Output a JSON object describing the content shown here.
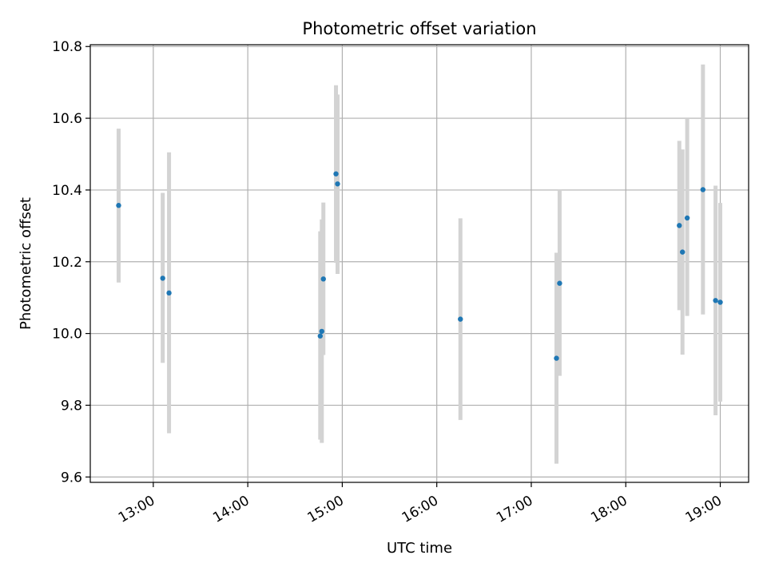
{
  "chart_data": {
    "type": "scatter",
    "title": "Photometric offset variation",
    "xlabel": "UTC time",
    "ylabel": "Photometric offset",
    "x_unit": "UTC time of day (HH:MM)",
    "xlim": [
      "12:20",
      "19:18"
    ],
    "ylim": [
      9.585,
      10.805
    ],
    "x_ticks": [
      "13:00",
      "14:00",
      "15:00",
      "16:00",
      "17:00",
      "18:00",
      "19:00"
    ],
    "y_ticks": [
      "9.6",
      "9.8",
      "10.0",
      "10.2",
      "10.4",
      "10.6",
      "10.8"
    ],
    "grid": true,
    "point_color": "#1f77b4",
    "errorbar_color": "#d3d3d3",
    "series": [
      {
        "points": [
          {
            "x": "12:38",
            "y": 10.357,
            "ylow": 10.142,
            "yhigh": 10.571
          },
          {
            "x": "13:06",
            "y": 10.154,
            "ylow": 9.918,
            "yhigh": 10.392
          },
          {
            "x": "13:10",
            "y": 10.113,
            "ylow": 9.722,
            "yhigh": 10.505
          },
          {
            "x": "14:46",
            "y": 9.993,
            "ylow": 9.704,
            "yhigh": 10.285
          },
          {
            "x": "14:47",
            "y": 10.006,
            "ylow": 9.695,
            "yhigh": 10.318
          },
          {
            "x": "14:48",
            "y": 10.152,
            "ylow": 9.94,
            "yhigh": 10.365
          },
          {
            "x": "14:56",
            "y": 10.445,
            "ylow": 10.197,
            "yhigh": 10.692
          },
          {
            "x": "14:57",
            "y": 10.417,
            "ylow": 10.166,
            "yhigh": 10.666
          },
          {
            "x": "16:15",
            "y": 10.04,
            "ylow": 9.759,
            "yhigh": 10.321
          },
          {
            "x": "17:16",
            "y": 9.931,
            "ylow": 9.637,
            "yhigh": 10.225
          },
          {
            "x": "17:18",
            "y": 10.14,
            "ylow": 9.882,
            "yhigh": 10.4
          },
          {
            "x": "18:34",
            "y": 10.301,
            "ylow": 10.065,
            "yhigh": 10.537
          },
          {
            "x": "18:36",
            "y": 10.227,
            "ylow": 9.941,
            "yhigh": 10.513
          },
          {
            "x": "18:39",
            "y": 10.322,
            "ylow": 10.049,
            "yhigh": 10.598
          },
          {
            "x": "18:49",
            "y": 10.401,
            "ylow": 10.053,
            "yhigh": 10.75
          },
          {
            "x": "18:57",
            "y": 10.092,
            "ylow": 9.772,
            "yhigh": 10.412
          },
          {
            "x": "19:00",
            "y": 10.087,
            "ylow": 9.81,
            "yhigh": 10.364
          }
        ]
      }
    ]
  }
}
